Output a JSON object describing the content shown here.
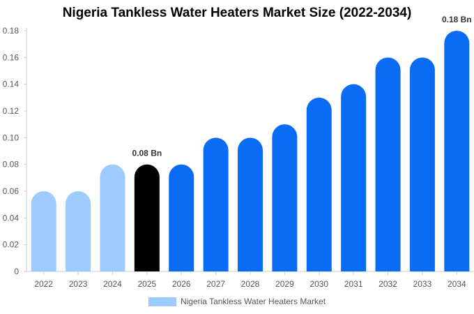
{
  "colors": {
    "historical": "#9ecbff",
    "current": "#000000",
    "forecast": "#0a6cf5",
    "axis": "#cccccc",
    "tick_text": "#555555"
  },
  "chart_data": {
    "type": "bar",
    "title": "Nigeria Tankless Water Heaters Market Size (2022-2034)",
    "categories": [
      "2022",
      "2023",
      "2024",
      "2025",
      "2026",
      "2027",
      "2028",
      "2029",
      "2030",
      "2031",
      "2032",
      "2033",
      "2034"
    ],
    "series": [
      {
        "name": "Nigeria Tankless Water Heaters Market",
        "values": [
          0.06,
          0.06,
          0.08,
          0.08,
          0.08,
          0.1,
          0.1,
          0.11,
          0.13,
          0.14,
          0.16,
          0.16,
          0.18
        ]
      }
    ],
    "bar_groups": [
      "historical",
      "historical",
      "historical",
      "current",
      "forecast",
      "forecast",
      "forecast",
      "forecast",
      "forecast",
      "forecast",
      "forecast",
      "forecast",
      "forecast"
    ],
    "data_labels": [
      {
        "index": 3,
        "text": "0.08 Bn"
      },
      {
        "index": 12,
        "text": "0.18 Bn"
      }
    ],
    "y_ticks": [
      "0",
      "0.02",
      "0.04",
      "0.06",
      "0.08",
      "0.10",
      "0.12",
      "0.14",
      "0.16",
      "0.18"
    ],
    "ylim": [
      0,
      0.18
    ],
    "xlabel": "",
    "ylabel": "",
    "grid": false,
    "legend_position": "bottom-center"
  }
}
